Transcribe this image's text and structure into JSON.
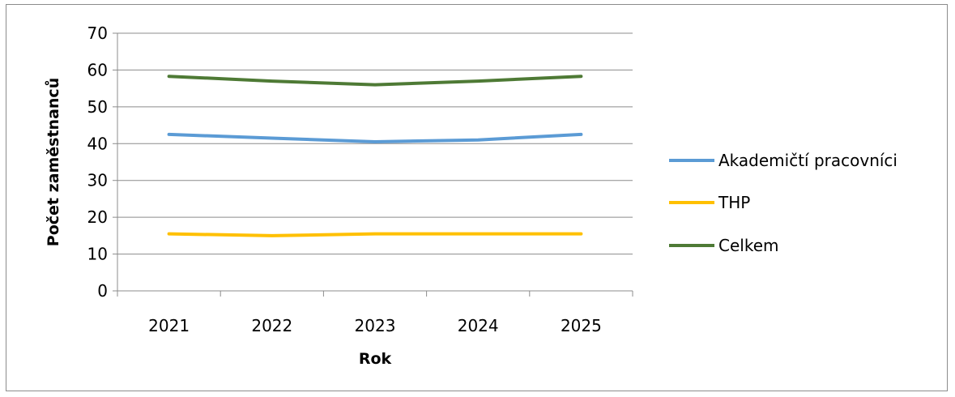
{
  "chart_data": {
    "type": "line",
    "categories": [
      "2021",
      "2022",
      "2023",
      "2024",
      "2025"
    ],
    "series": [
      {
        "name": "Akademičtí pracovníci",
        "color": "#5b9bd5",
        "values": [
          42.5,
          41.5,
          40.5,
          41,
          42.5
        ]
      },
      {
        "name": "THP",
        "color": "#ffc000",
        "values": [
          15.5,
          15,
          15.5,
          15.5,
          15.5
        ]
      },
      {
        "name": "Celkem",
        "color": "#4e7a35",
        "values": [
          58.3,
          57,
          56,
          57,
          58.3
        ]
      }
    ],
    "title": "",
    "xlabel": "Rok",
    "ylabel": "Počet zaměstnanců",
    "ylim": [
      0,
      70
    ],
    "yticks": [
      "0",
      "10",
      "20",
      "30",
      "40",
      "50",
      "60",
      "70"
    ],
    "grid": true,
    "legend_position": "right"
  }
}
